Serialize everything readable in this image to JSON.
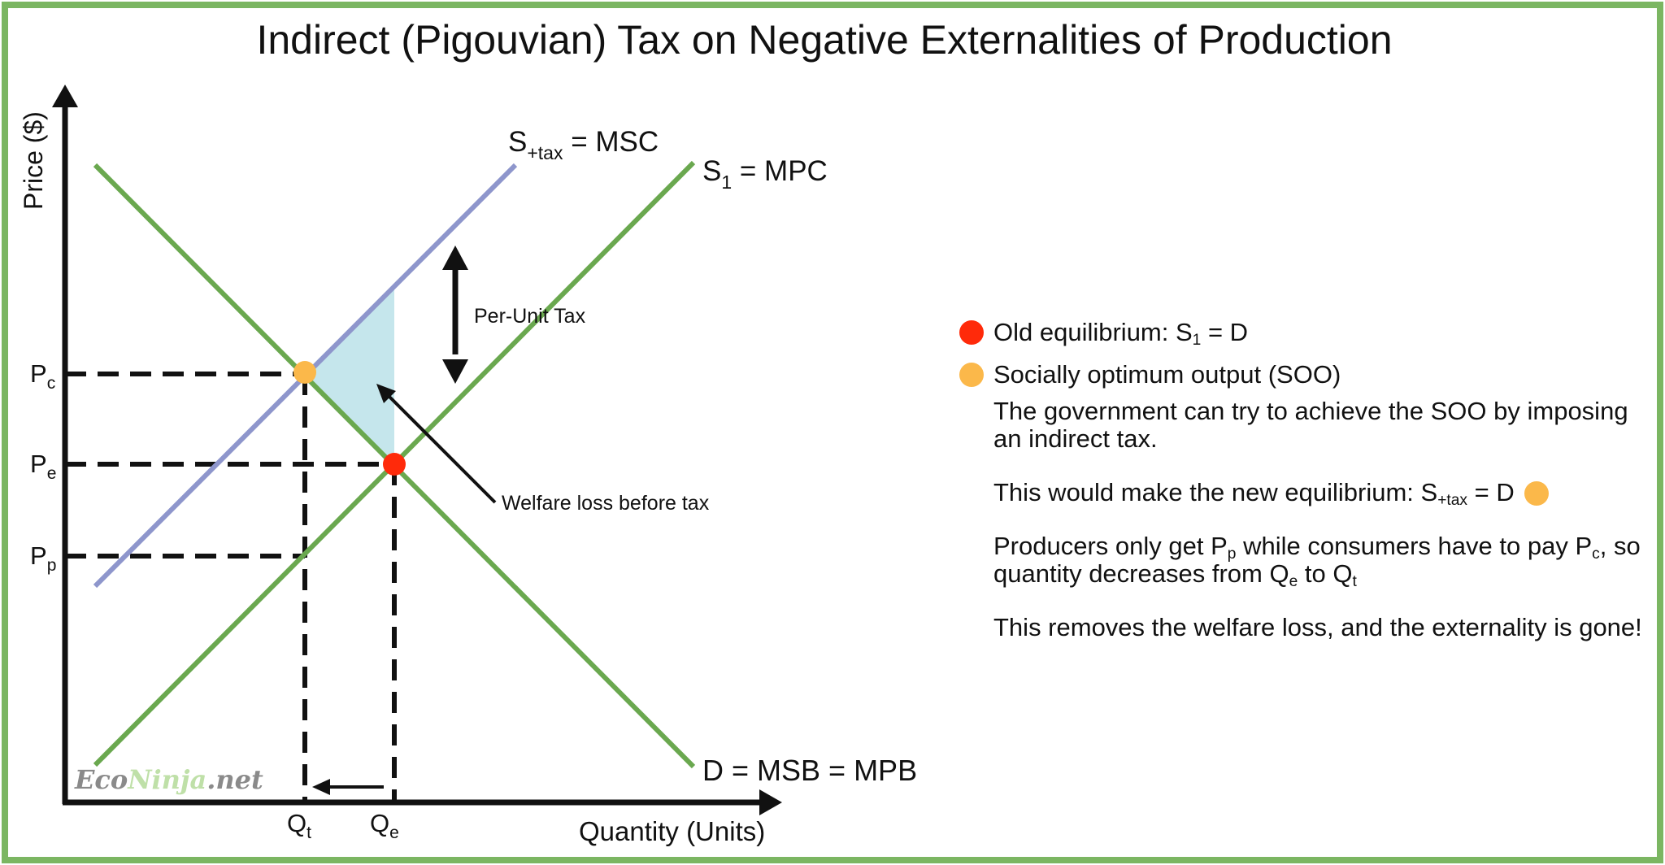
{
  "title": "Indirect (Pigouvian) Tax on Negative Externalities of Production",
  "axes": {
    "y_label": "Price ($)",
    "x_label": "Quantity (Units)"
  },
  "curves": {
    "msc": {
      "base": "S",
      "sub": "+tax",
      "rest": " = MSC",
      "color": "#8e96cc"
    },
    "mpc": {
      "base": "S",
      "sub": "1",
      "rest": " = MPC",
      "color": "#6aa84f"
    },
    "demand": {
      "label": "D = MSB = MPB",
      "color": "#6aa84f"
    }
  },
  "price_levels": [
    {
      "base": "P",
      "sub": "c"
    },
    {
      "base": "P",
      "sub": "e"
    },
    {
      "base": "P",
      "sub": "p"
    }
  ],
  "quantity_levels": [
    {
      "base": "Q",
      "sub": "t"
    },
    {
      "base": "Q",
      "sub": "e"
    }
  ],
  "annotations": {
    "per_unit_tax": "Per-Unit Tax",
    "welfare_loss": "Welfare loss before tax"
  },
  "colors": {
    "old_equilibrium": "#ff2a0a",
    "soo": "#fbb84a",
    "welfare_area": "#c5e6ec",
    "border": "#7bb662",
    "axis": "#111111"
  },
  "legend": {
    "old_eq": {
      "text": "Old equilibrium: S",
      "sub": "1",
      "rest": " = D"
    },
    "soo": {
      "text": "Socially optimum output (SOO)"
    },
    "para1": "The government can try to achieve the SOO by imposing an indirect tax.",
    "para2": {
      "text": "This would make the new equilibrium: S",
      "sub": "+tax",
      "rest": " = D"
    },
    "para3": {
      "t1": "Producers only get P",
      "s1": "p",
      "t2": " while consumers have to pay P",
      "s2": "c",
      "t3": ", so quantity decreases from Q",
      "s3": "e",
      "t4": " to Q",
      "s4": "t"
    },
    "para4": "This removes the welfare loss, and the externality is gone!"
  },
  "watermark": {
    "part1": "Eco",
    "part2": "Ninja",
    "part3": ".net"
  }
}
